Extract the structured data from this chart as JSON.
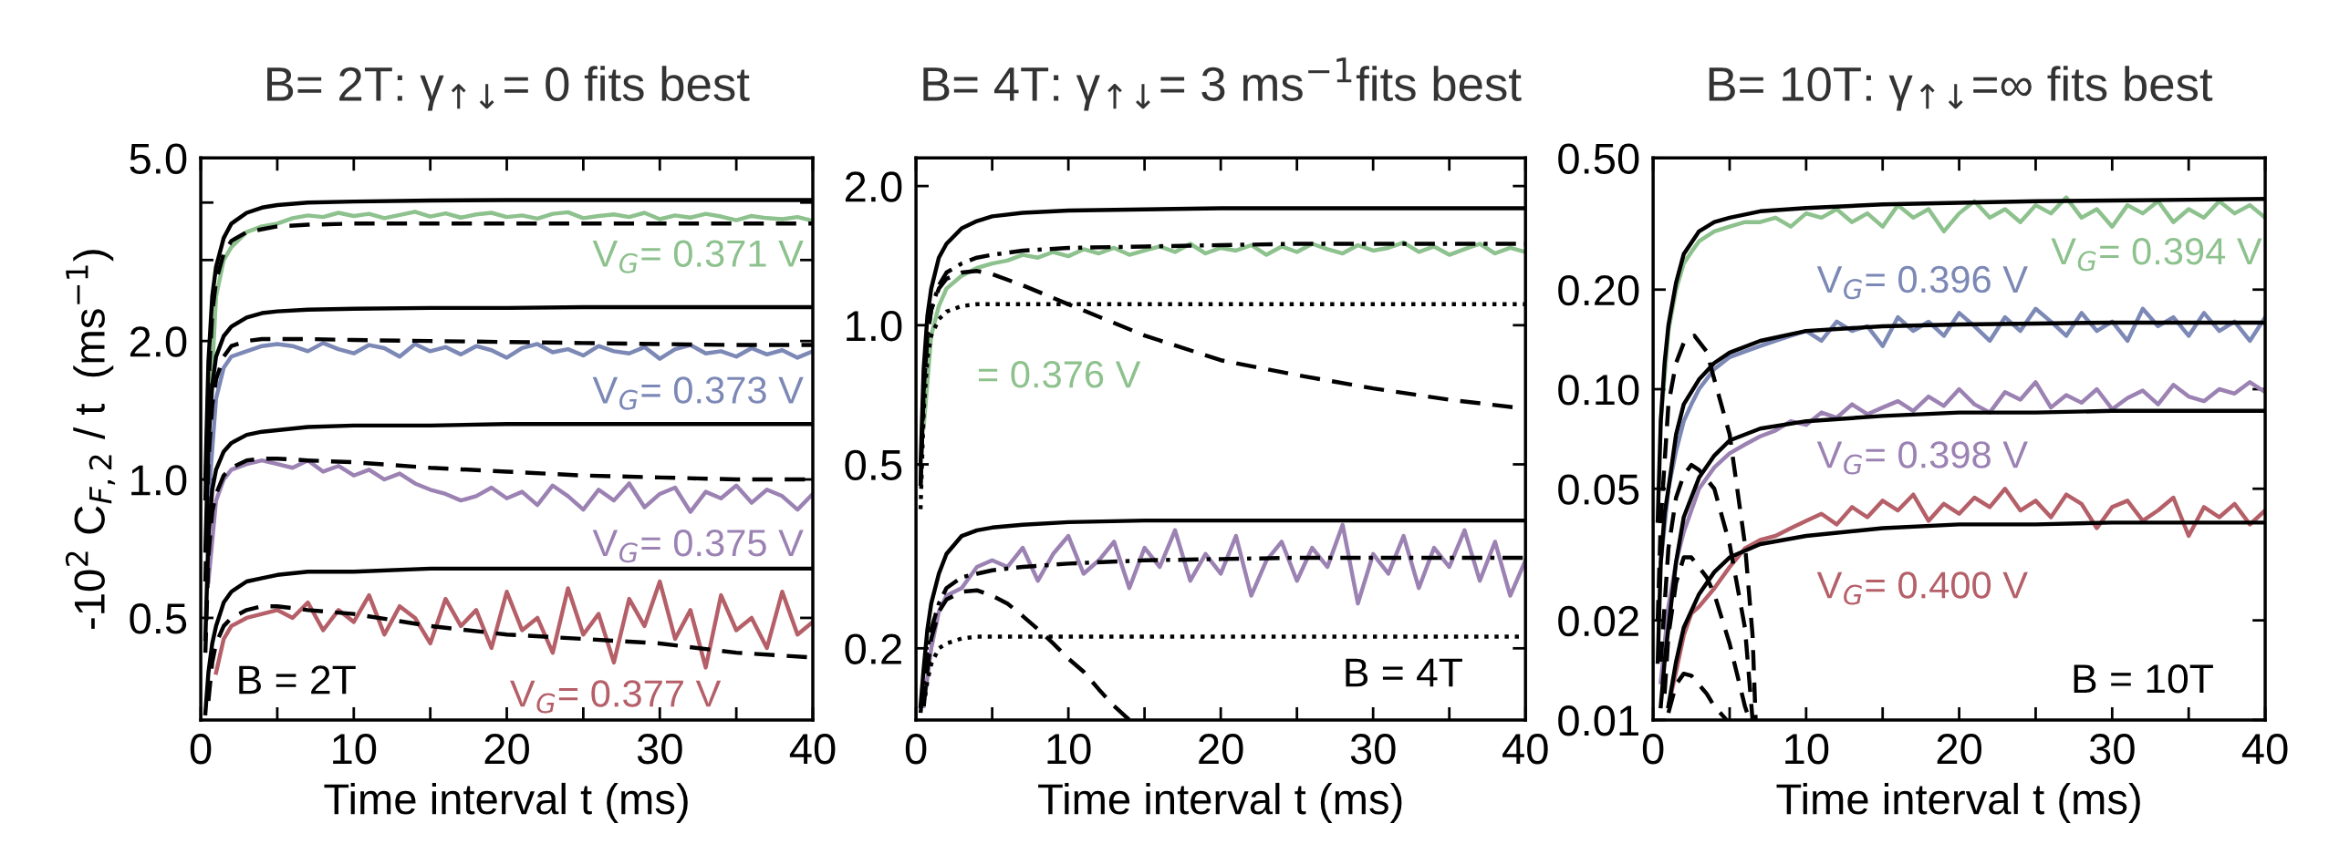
{
  "chart_data": [
    {
      "type": "line",
      "title": "B= 2T: γ$_{↑↓}$= 0 fits best",
      "xlabel": "Time interval t (ms)",
      "ylabel": "-10$^{2}$ C$_{F,2}$ / t  (ms$^{−1}$)",
      "log": "y",
      "xlim": [
        0,
        40
      ],
      "xticks": [
        0,
        {
          "value": 5,
          "label": null
        },
        10,
        {
          "value": 15,
          "label": null
        },
        20,
        {
          "value": 25,
          "label": null
        },
        30,
        {
          "value": 35,
          "label": null
        },
        40
      ],
      "ylim": [
        0.3,
        5.0
      ],
      "yticks": [
        {
          "value": 0.5,
          "label": "0.5"
        },
        {
          "value": 1.0,
          "label": "1.0"
        },
        {
          "value": 2.0,
          "label": "2.0"
        },
        {
          "value": 3.0,
          "label": null
        },
        {
          "value": 4.0,
          "label": null
        },
        {
          "value": 5.0,
          "label": "5.0"
        }
      ],
      "grid": false,
      "legend": false,
      "x": [
        0.5,
        1,
        1.5,
        2,
        3,
        4,
        5,
        6,
        7,
        8,
        9,
        10,
        11,
        12,
        13,
        14,
        15,
        16,
        17,
        18,
        19,
        20,
        21,
        22,
        23,
        24,
        25,
        26,
        27,
        28,
        29,
        30,
        31,
        32,
        33,
        34,
        35,
        36,
        37,
        38,
        39,
        40
      ],
      "series": [
        {
          "name": "V$_{G}$= 0.371 V",
          "color": "#8dc18d",
          "line_style": "solid",
          "values": [
            1.2,
            2.5,
            3.0,
            3.2,
            3.45,
            3.55,
            3.6,
            3.7,
            3.75,
            3.72,
            3.8,
            3.74,
            3.78,
            3.7,
            3.76,
            3.82,
            3.73,
            3.79,
            3.71,
            3.77,
            3.8,
            3.72,
            3.75,
            3.69,
            3.78,
            3.81,
            3.7,
            3.74,
            3.77,
            3.72,
            3.8,
            3.68,
            3.75,
            3.71,
            3.78,
            3.73,
            3.66,
            3.74,
            3.7,
            3.68,
            3.72,
            3.65
          ]
        },
        {
          "name": "V$_{G}$= 0.373 V",
          "color": "#7c88b5",
          "line_style": "solid",
          "values": [
            0.9,
            1.5,
            1.75,
            1.85,
            1.9,
            1.95,
            1.97,
            1.95,
            1.9,
            1.98,
            1.92,
            1.88,
            1.96,
            1.93,
            1.85,
            1.97,
            1.9,
            1.94,
            1.87,
            1.95,
            1.91,
            1.84,
            1.93,
            1.97,
            1.89,
            1.92,
            1.86,
            1.95,
            1.9,
            1.88,
            1.94,
            1.83,
            1.92,
            1.96,
            1.88,
            1.9,
            1.85,
            1.93,
            1.87,
            1.91,
            1.84,
            1.9
          ]
        },
        {
          "name": "V$_{G}$= 0.375 V",
          "color": "#9b82b3",
          "line_style": "solid",
          "values": [
            0.6,
            0.9,
            1.0,
            1.05,
            1.08,
            1.1,
            1.08,
            1.06,
            1.1,
            1.04,
            1.07,
            1.02,
            1.05,
            1.0,
            1.03,
            0.98,
            0.95,
            0.93,
            0.9,
            0.92,
            0.96,
            0.91,
            0.94,
            0.88,
            0.97,
            0.92,
            0.86,
            0.95,
            0.9,
            0.98,
            0.87,
            0.93,
            0.96,
            0.85,
            0.94,
            0.91,
            0.97,
            0.89,
            0.95,
            0.92,
            0.86,
            0.93
          ]
        },
        {
          "name": "V$_{G}$= 0.377 V",
          "color": "#b55f68",
          "line_style": "solid",
          "values": [
            null,
            0.38,
            0.45,
            0.48,
            0.5,
            0.51,
            0.52,
            0.5,
            0.54,
            0.47,
            0.52,
            0.49,
            0.56,
            0.46,
            0.53,
            0.5,
            0.44,
            0.55,
            0.48,
            0.52,
            0.43,
            0.57,
            0.47,
            0.5,
            0.42,
            0.58,
            0.46,
            0.51,
            0.4,
            0.55,
            0.48,
            0.6,
            0.45,
            0.52,
            0.39,
            0.56,
            0.47,
            0.5,
            0.43,
            0.57,
            0.46,
            0.49
          ]
        },
        {
          "color": "#000000",
          "line_style": "solid",
          "x": [
            0.3,
            0.5,
            0.75,
            1,
            1.5,
            2,
            3,
            4,
            5,
            7,
            10,
            15,
            20,
            25,
            30,
            35,
            40
          ],
          "values": [
            1.0,
            1.8,
            2.5,
            2.9,
            3.35,
            3.6,
            3.8,
            3.9,
            3.95,
            4.0,
            4.02,
            4.04,
            4.05,
            4.05,
            4.05,
            4.05,
            4.05
          ]
        },
        {
          "color": "#000000",
          "line_style": "dashed",
          "x": [
            0.3,
            0.5,
            0.75,
            1,
            1.5,
            2,
            3,
            4,
            5,
            7,
            10,
            15,
            20,
            25,
            30,
            35,
            40
          ],
          "values": [
            0.9,
            1.6,
            2.3,
            2.7,
            3.1,
            3.3,
            3.45,
            3.5,
            3.55,
            3.58,
            3.6,
            3.6,
            3.6,
            3.6,
            3.6,
            3.6,
            3.6
          ]
        },
        {
          "color": "#000000",
          "line_style": "solid",
          "x": [
            0.3,
            0.5,
            0.75,
            1,
            1.5,
            2,
            3,
            4,
            5,
            7,
            10,
            15,
            20,
            25,
            30,
            35,
            40
          ],
          "values": [
            0.7,
            1.2,
            1.6,
            1.85,
            2.05,
            2.15,
            2.25,
            2.3,
            2.32,
            2.34,
            2.35,
            2.36,
            2.36,
            2.37,
            2.37,
            2.37,
            2.37
          ]
        },
        {
          "color": "#000000",
          "line_style": "dashed",
          "x": [
            0.3,
            0.5,
            0.75,
            1,
            1.5,
            2,
            3,
            4,
            5,
            7,
            10,
            15,
            20,
            25,
            30,
            35,
            40
          ],
          "values": [
            0.6,
            1.1,
            1.45,
            1.65,
            1.85,
            1.95,
            2.0,
            2.02,
            2.02,
            2.02,
            2.01,
            2.0,
            1.99,
            1.98,
            1.97,
            1.96,
            1.96
          ]
        },
        {
          "color": "#000000",
          "line_style": "solid",
          "x": [
            0.3,
            0.5,
            0.75,
            1,
            1.5,
            2,
            3,
            4,
            5,
            7,
            10,
            15,
            20,
            25,
            30,
            35,
            40
          ],
          "values": [
            0.45,
            0.75,
            0.95,
            1.05,
            1.15,
            1.2,
            1.25,
            1.27,
            1.28,
            1.3,
            1.31,
            1.31,
            1.32,
            1.32,
            1.32,
            1.32,
            1.32
          ]
        },
        {
          "color": "#000000",
          "line_style": "dashed",
          "x": [
            0.3,
            0.5,
            0.75,
            1,
            1.5,
            2,
            3,
            4,
            5,
            7,
            10,
            15,
            20,
            25,
            30,
            35,
            40
          ],
          "values": [
            0.42,
            0.68,
            0.85,
            0.93,
            1.02,
            1.06,
            1.1,
            1.11,
            1.11,
            1.1,
            1.09,
            1.06,
            1.04,
            1.02,
            1.01,
            1.0,
            1.0
          ]
        },
        {
          "color": "#000000",
          "line_style": "solid",
          "x": [
            0.3,
            0.5,
            0.75,
            1,
            1.5,
            2,
            3,
            4,
            5,
            7,
            10,
            15,
            20,
            25,
            30,
            35,
            40
          ],
          "values": [
            0.31,
            0.38,
            0.44,
            0.48,
            0.54,
            0.57,
            0.6,
            0.61,
            0.62,
            0.63,
            0.63,
            0.64,
            0.64,
            0.64,
            0.64,
            0.64,
            0.64
          ]
        },
        {
          "color": "#000000",
          "line_style": "dashed",
          "x": [
            0.5,
            0.75,
            1,
            1.5,
            2,
            3,
            4,
            5,
            7,
            10,
            15,
            20,
            25,
            30,
            35,
            40
          ],
          "values": [
            0.33,
            0.4,
            0.44,
            0.48,
            0.5,
            0.52,
            0.53,
            0.53,
            0.52,
            0.51,
            0.48,
            0.46,
            0.45,
            0.44,
            0.42,
            0.41
          ]
        }
      ],
      "annotations": [
        "B = 2T"
      ]
    },
    {
      "type": "line",
      "title": "B= 4T: γ$_{↑↓}$= 3 ms$^{−1}$fits best",
      "xlabel": "Time interval t (ms)",
      "log": "y",
      "xlim": [
        0,
        40
      ],
      "xticks": [
        0,
        {
          "value": 5,
          "label": null
        },
        10,
        {
          "value": 15,
          "label": null
        },
        20,
        {
          "value": 25,
          "label": null
        },
        30,
        {
          "value": 35,
          "label": null
        },
        40
      ],
      "ylim": [
        0.14,
        2.3
      ],
      "yticks": [
        {
          "value": 0.2,
          "label": "0.2"
        },
        {
          "value": 0.5,
          "label": "0.5"
        },
        {
          "value": 1.0,
          "label": "1.0"
        },
        {
          "value": 2.0,
          "label": "2.0"
        }
      ],
      "grid": false,
      "legend": false,
      "x": [
        0.5,
        1,
        1.5,
        2,
        3,
        4,
        5,
        6,
        7,
        8,
        9,
        10,
        11,
        12,
        13,
        14,
        15,
        16,
        17,
        18,
        19,
        20,
        21,
        22,
        23,
        24,
        25,
        26,
        27,
        28,
        29,
        30,
        31,
        32,
        33,
        34,
        35,
        36,
        37,
        38,
        39,
        40
      ],
      "series": [
        {
          "name": "= 0.376 V",
          "color": "#8dc18d",
          "line_style": "solid",
          "values": [
            0.6,
            0.95,
            1.1,
            1.2,
            1.28,
            1.33,
            1.36,
            1.38,
            1.42,
            1.4,
            1.44,
            1.41,
            1.46,
            1.43,
            1.47,
            1.42,
            1.45,
            1.48,
            1.44,
            1.5,
            1.43,
            1.47,
            1.45,
            1.49,
            1.42,
            1.48,
            1.44,
            1.5,
            1.46,
            1.43,
            1.49,
            1.45,
            1.47,
            1.51,
            1.44,
            1.48,
            1.42,
            1.46,
            1.5,
            1.43,
            1.47,
            1.44
          ]
        },
        {
          "color": "#9b82b3",
          "line_style": "solid",
          "values": [
            0.15,
            0.2,
            0.24,
            0.26,
            0.27,
            0.3,
            0.31,
            0.3,
            0.33,
            0.28,
            0.32,
            0.35,
            0.29,
            0.31,
            0.34,
            0.27,
            0.33,
            0.3,
            0.36,
            0.28,
            0.32,
            0.29,
            0.35,
            0.26,
            0.31,
            0.34,
            0.28,
            0.33,
            0.3,
            0.37,
            0.25,
            0.32,
            0.29,
            0.35,
            0.27,
            0.33,
            0.3,
            0.36,
            0.28,
            0.34,
            0.26,
            0.31
          ]
        },
        {
          "color": "#000000",
          "line_style": "solid",
          "x": [
            0.3,
            0.5,
            0.75,
            1,
            1.5,
            2,
            3,
            4,
            5,
            7,
            10,
            15,
            20,
            25,
            30,
            35,
            40
          ],
          "values": [
            0.5,
            0.8,
            1.05,
            1.2,
            1.4,
            1.5,
            1.62,
            1.68,
            1.72,
            1.75,
            1.77,
            1.78,
            1.79,
            1.79,
            1.79,
            1.79,
            1.79
          ]
        },
        {
          "color": "#000000",
          "line_style": "dashdot",
          "x": [
            0.3,
            0.5,
            0.75,
            1,
            1.5,
            2,
            3,
            4,
            5,
            7,
            10,
            15,
            20,
            25,
            30,
            35,
            40
          ],
          "values": [
            0.45,
            0.72,
            0.95,
            1.08,
            1.22,
            1.3,
            1.36,
            1.4,
            1.42,
            1.45,
            1.47,
            1.48,
            1.49,
            1.5,
            1.5,
            1.5,
            1.5
          ]
        },
        {
          "color": "#000000",
          "line_style": "dashed",
          "x": [
            0.3,
            0.5,
            0.75,
            1,
            1.5,
            2,
            3,
            4,
            5,
            7,
            10,
            15,
            20,
            25,
            30,
            35,
            40
          ],
          "values": [
            0.45,
            0.72,
            0.95,
            1.08,
            1.2,
            1.26,
            1.3,
            1.31,
            1.29,
            1.22,
            1.11,
            0.95,
            0.84,
            0.78,
            0.73,
            0.69,
            0.66
          ]
        },
        {
          "color": "#000000",
          "line_style": "dotted",
          "x": [
            0.3,
            0.5,
            0.75,
            1,
            1.5,
            2,
            3,
            4,
            5,
            7,
            10,
            15,
            20,
            25,
            30,
            35,
            40
          ],
          "values": [
            0.4,
            0.65,
            0.85,
            0.95,
            1.03,
            1.07,
            1.1,
            1.11,
            1.11,
            1.11,
            1.11,
            1.11,
            1.11,
            1.11,
            1.11,
            1.11,
            1.11
          ]
        },
        {
          "color": "#000000",
          "line_style": "solid",
          "x": [
            0.3,
            0.5,
            0.75,
            1,
            1.5,
            2,
            3,
            4,
            5,
            7,
            10,
            15,
            20,
            25,
            30,
            35,
            40
          ],
          "values": [
            0.15,
            0.18,
            0.22,
            0.25,
            0.29,
            0.32,
            0.35,
            0.36,
            0.365,
            0.37,
            0.375,
            0.378,
            0.378,
            0.378,
            0.378,
            0.378,
            0.378
          ]
        },
        {
          "color": "#000000",
          "line_style": "dashdot",
          "x": [
            0.3,
            0.5,
            0.75,
            1,
            1.5,
            2,
            3,
            4,
            5,
            7,
            10,
            15,
            20,
            25,
            30,
            35,
            40
          ],
          "values": [
            0.145,
            0.17,
            0.2,
            0.22,
            0.25,
            0.27,
            0.285,
            0.29,
            0.295,
            0.3,
            0.305,
            0.31,
            0.312,
            0.314,
            0.314,
            0.314,
            0.314
          ]
        },
        {
          "color": "#000000",
          "line_style": "dashed",
          "x": [
            0.5,
            0.75,
            1,
            1.5,
            2,
            3,
            4,
            5,
            6,
            7,
            8,
            9,
            10,
            11,
            12,
            13,
            14
          ],
          "values": [
            0.15,
            0.18,
            0.21,
            0.24,
            0.255,
            0.265,
            0.267,
            0.26,
            0.25,
            0.235,
            0.22,
            0.205,
            0.19,
            0.178,
            0.163,
            0.15,
            0.14
          ]
        },
        {
          "color": "#000000",
          "line_style": "dotted",
          "x": [
            0.5,
            0.75,
            1,
            1.5,
            2,
            3,
            4,
            5,
            10,
            20,
            30,
            40
          ],
          "values": [
            0.15,
            0.17,
            0.185,
            0.2,
            0.205,
            0.21,
            0.212,
            0.212,
            0.212,
            0.212,
            0.212,
            0.212
          ]
        }
      ],
      "annotations": [
        "B = 4T"
      ]
    },
    {
      "type": "line",
      "title": "B= 10T: γ$_{↑↓}$=∞ fits best",
      "xlabel": "Time interval t (ms)",
      "log": "y",
      "xlim": [
        0,
        40
      ],
      "xticks": [
        0,
        {
          "value": 5,
          "label": null
        },
        10,
        {
          "value": 15,
          "label": null
        },
        20,
        {
          "value": 25,
          "label": null
        },
        30,
        {
          "value": 35,
          "label": null
        },
        40
      ],
      "ylim": [
        0.01,
        0.5
      ],
      "yticks": [
        {
          "value": 0.01,
          "label": "0.01"
        },
        {
          "value": 0.02,
          "label": "0.02"
        },
        {
          "value": 0.05,
          "label": "0.05"
        },
        {
          "value": 0.1,
          "label": "0.10"
        },
        {
          "value": 0.2,
          "label": "0.20"
        },
        {
          "value": 0.5,
          "label": "0.50"
        }
      ],
      "grid": false,
      "legend": false,
      "x": [
        0.5,
        1,
        1.5,
        2,
        2.5,
        3,
        4,
        5,
        6,
        7,
        8,
        9,
        10,
        11,
        12,
        13,
        14,
        15,
        16,
        17,
        18,
        19,
        20,
        21,
        22,
        23,
        24,
        25,
        26,
        27,
        28,
        29,
        30,
        31,
        32,
        33,
        34,
        35,
        36,
        37,
        38,
        39,
        40
      ],
      "series": [
        {
          "name": "V$_{G}$= 0.394 V",
          "color": "#8dc18d",
          "line_style": "solid",
          "values": [
            0.08,
            0.15,
            0.2,
            0.24,
            0.26,
            0.28,
            0.3,
            0.31,
            0.32,
            0.32,
            0.33,
            0.31,
            0.34,
            0.33,
            0.35,
            0.32,
            0.34,
            0.31,
            0.36,
            0.33,
            0.35,
            0.3,
            0.34,
            0.37,
            0.33,
            0.35,
            0.32,
            0.36,
            0.34,
            0.38,
            0.33,
            0.35,
            0.31,
            0.36,
            0.34,
            0.37,
            0.32,
            0.35,
            0.33,
            0.37,
            0.34,
            0.36,
            0.33
          ]
        },
        {
          "name": "V$_{G}$= 0.396 V",
          "color": "#7c88b5",
          "line_style": "solid",
          "values": [
            0.03,
            0.05,
            0.065,
            0.08,
            0.09,
            0.1,
            0.115,
            0.125,
            0.13,
            0.135,
            0.14,
            0.145,
            0.15,
            0.14,
            0.16,
            0.15,
            0.155,
            0.135,
            0.165,
            0.15,
            0.16,
            0.145,
            0.17,
            0.155,
            0.14,
            0.165,
            0.15,
            0.175,
            0.16,
            0.145,
            0.17,
            0.15,
            0.16,
            0.14,
            0.175,
            0.155,
            0.165,
            0.145,
            0.17,
            0.15,
            0.16,
            0.14,
            0.165
          ]
        },
        {
          "name": "V$_{G}$= 0.398 V",
          "color": "#9b82b3",
          "line_style": "solid",
          "values": [
            0.013,
            0.022,
            0.03,
            0.037,
            0.043,
            0.05,
            0.058,
            0.064,
            0.068,
            0.072,
            0.075,
            0.08,
            0.078,
            0.085,
            0.082,
            0.09,
            0.084,
            0.088,
            0.092,
            0.086,
            0.095,
            0.089,
            0.1,
            0.09,
            0.085,
            0.098,
            0.093,
            0.105,
            0.088,
            0.096,
            0.091,
            0.1,
            0.087,
            0.094,
            0.099,
            0.09,
            0.103,
            0.095,
            0.092,
            0.1,
            0.097,
            0.105,
            0.098
          ]
        },
        {
          "name": "V$_{G}$= 0.400 V",
          "color": "#b55f68",
          "line_style": "solid",
          "values": [
            null,
            0.011,
            0.014,
            0.018,
            0.021,
            0.022,
            0.025,
            0.029,
            0.033,
            0.035,
            0.036,
            0.038,
            0.04,
            0.042,
            0.039,
            0.044,
            0.041,
            0.046,
            0.043,
            0.048,
            0.04,
            0.045,
            0.042,
            0.047,
            0.044,
            0.05,
            0.043,
            0.046,
            0.041,
            0.048,
            0.045,
            0.038,
            0.044,
            0.046,
            0.04,
            0.043,
            0.047,
            0.036,
            0.044,
            0.041,
            0.045,
            0.039,
            0.043
          ]
        },
        {
          "color": "#000000",
          "line_style": "solid",
          "x": [
            0.3,
            0.5,
            0.75,
            1,
            1.5,
            2,
            3,
            4,
            5,
            7,
            10,
            15,
            20,
            25,
            30,
            35,
            40
          ],
          "values": [
            0.04,
            0.08,
            0.12,
            0.156,
            0.21,
            0.256,
            0.3,
            0.32,
            0.33,
            0.345,
            0.353,
            0.362,
            0.366,
            0.37,
            0.372,
            0.374,
            0.376
          ]
        },
        {
          "color": "#000000",
          "line_style": "solid",
          "x": [
            0.3,
            0.5,
            0.75,
            1,
            1.5,
            2,
            3,
            4,
            5,
            7,
            10,
            15,
            20,
            25,
            30,
            35,
            40
          ],
          "values": [
            0.015,
            0.03,
            0.042,
            0.05,
            0.073,
            0.09,
            0.107,
            0.12,
            0.129,
            0.14,
            0.15,
            0.155,
            0.157,
            0.158,
            0.159,
            0.159,
            0.159
          ]
        },
        {
          "color": "#000000",
          "line_style": "solid",
          "x": [
            0.5,
            0.75,
            1,
            1.5,
            2,
            3,
            4,
            5,
            7,
            10,
            15,
            20,
            25,
            30,
            35,
            40
          ],
          "values": [
            0.011,
            0.015,
            0.019,
            0.03,
            0.041,
            0.054,
            0.063,
            0.07,
            0.076,
            0.08,
            0.083,
            0.085,
            0.085,
            0.086,
            0.086,
            0.086
          ]
        },
        {
          "color": "#000000",
          "line_style": "solid",
          "x": [
            1,
            1.5,
            2,
            3,
            4,
            5,
            7,
            10,
            15,
            20,
            25,
            30,
            35,
            40
          ],
          "values": [
            0.011,
            0.015,
            0.019,
            0.024,
            0.028,
            0.031,
            0.034,
            0.036,
            0.038,
            0.039,
            0.039,
            0.0395,
            0.0395,
            0.0395
          ]
        },
        {
          "color": "#000000",
          "line_style": "dashed",
          "x": [
            0.3,
            0.5,
            1,
            1.5,
            2,
            2.7,
            3.5,
            4,
            5,
            6,
            6.5,
            6.7
          ],
          "values": [
            0.02,
            0.04,
            0.09,
            0.12,
            0.138,
            0.145,
            0.13,
            0.107,
            0.073,
            0.034,
            0.018,
            0.01
          ]
        },
        {
          "color": "#000000",
          "line_style": "dashed",
          "x": [
            0.5,
            1,
            1.5,
            2,
            2.5,
            3,
            4,
            5,
            6,
            6.5
          ],
          "values": [
            0.015,
            0.033,
            0.047,
            0.055,
            0.059,
            0.057,
            0.05,
            0.034,
            0.019,
            0.01
          ]
        },
        {
          "color": "#000000",
          "line_style": "dashed",
          "x": [
            0.75,
            1,
            1.5,
            2,
            2.5,
            3.5,
            4,
            5,
            6,
            6.3
          ],
          "values": [
            0.012,
            0.018,
            0.026,
            0.031,
            0.031,
            0.027,
            0.024,
            0.017,
            0.011,
            0.01
          ]
        },
        {
          "color": "#000000",
          "line_style": "dashed",
          "x": [
            1,
            1.5,
            2,
            2.5,
            3.5,
            4,
            4.8
          ],
          "values": [
            0.0105,
            0.0128,
            0.0138,
            0.0136,
            0.012,
            0.011,
            0.01
          ]
        }
      ],
      "annotations": [
        "B = 10T"
      ]
    }
  ]
}
